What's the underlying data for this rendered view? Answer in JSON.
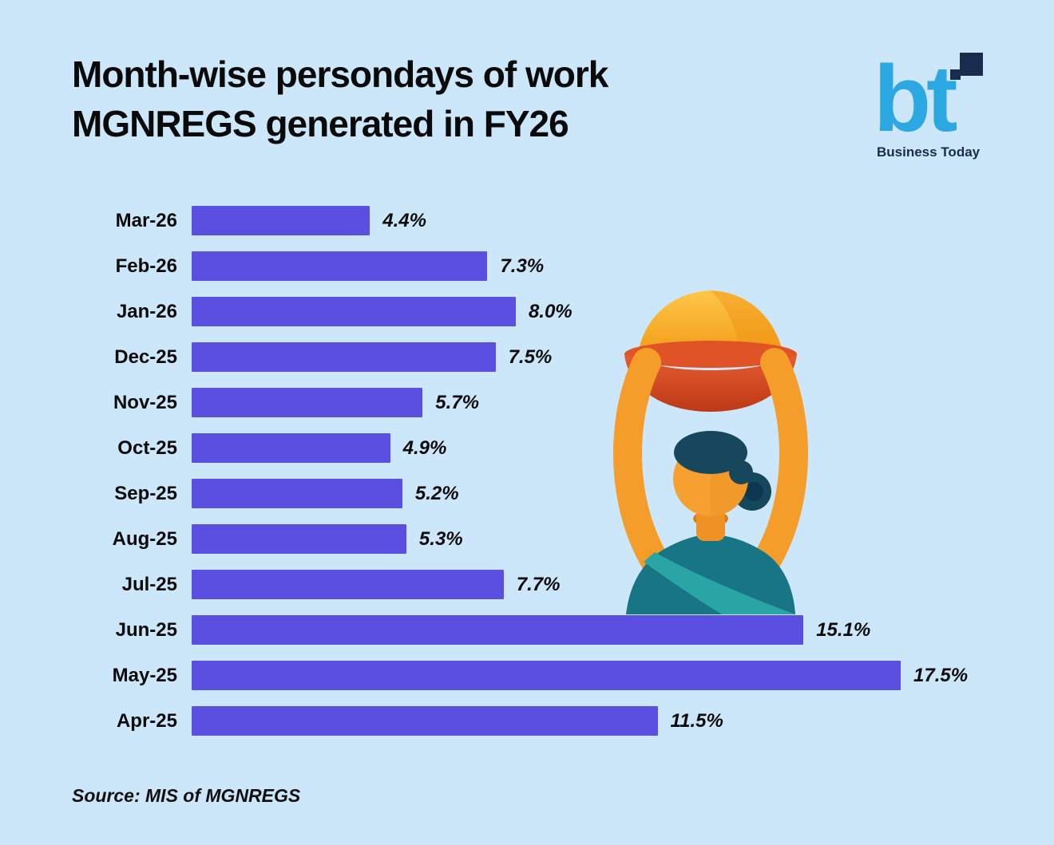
{
  "header": {
    "title_line1": "Month-wise persondays of work",
    "title_line2": "MGNREGS generated in FY26"
  },
  "logo": {
    "mark": "bt",
    "name": "Business Today"
  },
  "source": "Source: MIS of MGNREGS",
  "colors": {
    "background": "#cde7fa",
    "bar": "#5a4fe0",
    "title": "#0a0a0a",
    "logo_blue": "#2ba7e1",
    "logo_navy": "#1b2b4d"
  },
  "chart_data": {
    "type": "bar",
    "orientation": "horizontal",
    "title": "Month-wise persondays of work MGNREGS generated in FY26",
    "categories": [
      "Mar-26",
      "Feb-26",
      "Jan-26",
      "Dec-25",
      "Nov-25",
      "Oct-25",
      "Sep-25",
      "Aug-25",
      "Jul-25",
      "Jun-25",
      "May-25",
      "Apr-25"
    ],
    "values": [
      4.4,
      7.3,
      8.0,
      7.5,
      5.7,
      4.9,
      5.2,
      5.3,
      7.7,
      15.1,
      17.5,
      11.5
    ],
    "value_labels": [
      "4.4%",
      "7.3%",
      "8.0%",
      "7.5%",
      "5.7%",
      "4.9%",
      "5.2%",
      "5.3%",
      "7.7%",
      "15.1%",
      "17.5%",
      "11.5%"
    ],
    "unit": "%",
    "xlabel": "",
    "ylabel": "",
    "value_axis_max": 17.5,
    "grid": false,
    "legend": false
  }
}
